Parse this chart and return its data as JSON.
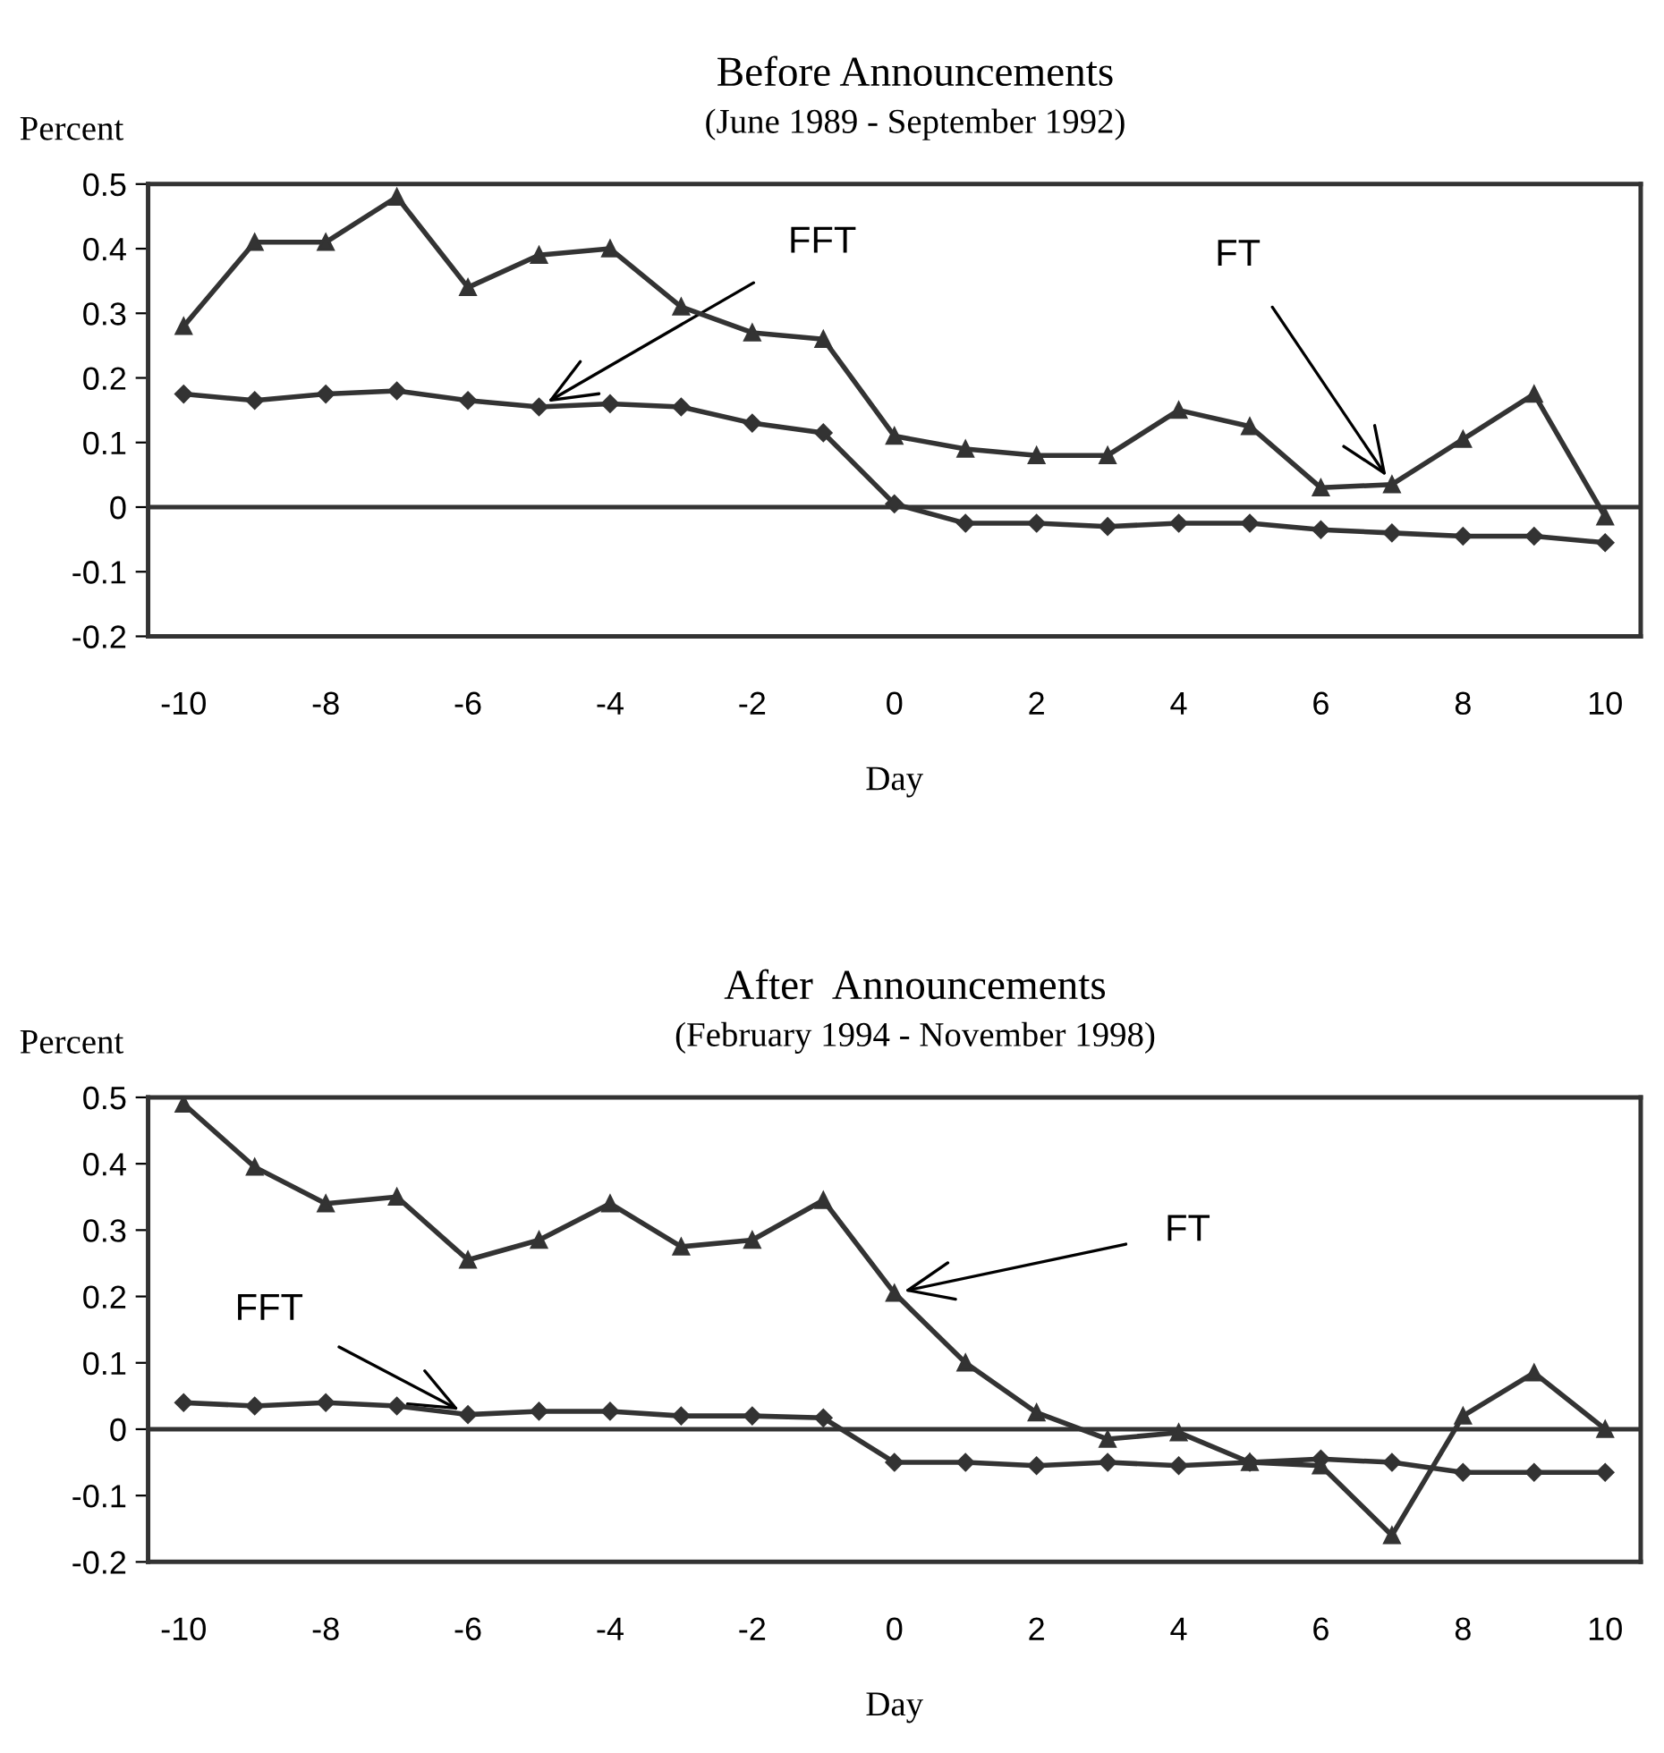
{
  "chart_data": [
    {
      "type": "line",
      "title": "Before Announcements",
      "subtitle": "(June 1989 - September 1992)",
      "xlabel": "Day",
      "ylabel": "Percent",
      "x": [
        -10,
        -9,
        -8,
        -7,
        -6,
        -5,
        -4,
        -3,
        -2,
        -1,
        0,
        1,
        2,
        3,
        4,
        5,
        6,
        7,
        8,
        9,
        10
      ],
      "series": [
        {
          "color": "#333333",
          "marker": "triangle",
          "values": [
            0.28,
            0.41,
            0.41,
            0.48,
            0.34,
            0.39,
            0.4,
            0.31,
            0.27,
            0.26,
            0.11,
            0.09,
            0.08,
            0.08,
            0.15,
            0.125,
            0.03,
            0.035,
            0.105,
            0.175,
            -0.015
          ]
        },
        {
          "color": "#333333",
          "marker": "diamond",
          "values": [
            0.175,
            0.165,
            0.175,
            0.18,
            0.165,
            0.155,
            0.16,
            0.155,
            0.13,
            0.115,
            0.005,
            -0.025,
            -0.025,
            -0.03,
            -0.025,
            -0.025,
            -0.035,
            -0.04,
            -0.045,
            -0.045,
            -0.055
          ]
        }
      ],
      "annotations": [
        {
          "text": "FFT",
          "x": -5,
          "y": 0.155
        },
        {
          "text": "FT",
          "x": 7,
          "y": 0.035
        }
      ],
      "ref_lines": [
        {
          "axis": "y",
          "value": 0,
          "color": "#333333"
        }
      ],
      "xlim": [
        -10.5,
        10.5
      ],
      "xticks": [
        -10,
        -8,
        -6,
        -4,
        -2,
        0,
        2,
        4,
        6,
        8,
        10
      ],
      "ylim": [
        -0.2,
        0.5
      ],
      "yticks": [
        -0.2,
        -0.1,
        0,
        0.1,
        0.2,
        0.3,
        0.4,
        0.5
      ],
      "grid": false,
      "legend": false
    },
    {
      "type": "line",
      "title": "After  Announcements",
      "subtitle": "(February 1994 - November 1998)",
      "xlabel": "Day",
      "ylabel": "Percent",
      "x": [
        -10,
        -9,
        -8,
        -7,
        -6,
        -5,
        -4,
        -3,
        -2,
        -1,
        0,
        1,
        2,
        3,
        4,
        5,
        6,
        7,
        8,
        9,
        10
      ],
      "series": [
        {
          "color": "#333333",
          "marker": "triangle",
          "values": [
            0.49,
            0.395,
            0.34,
            0.35,
            0.255,
            0.285,
            0.34,
            0.275,
            0.285,
            0.345,
            0.205,
            0.1,
            0.025,
            -0.015,
            -0.005,
            -0.05,
            -0.055,
            -0.16,
            0.02,
            0.085,
            0.0
          ]
        },
        {
          "color": "#333333",
          "marker": "diamond",
          "values": [
            0.04,
            0.035,
            0.04,
            0.035,
            0.022,
            0.027,
            0.027,
            0.02,
            0.02,
            0.017,
            -0.05,
            -0.05,
            -0.055,
            -0.05,
            -0.055,
            -0.05,
            -0.045,
            -0.05,
            -0.065,
            -0.065,
            -0.065
          ]
        }
      ],
      "annotations": [
        {
          "text": "FFT",
          "x": -6,
          "y": 0.022
        },
        {
          "text": "FT",
          "x": 0,
          "y": 0.205
        }
      ],
      "ref_lines": [
        {
          "axis": "y",
          "value": 0,
          "color": "#333333"
        }
      ],
      "xlim": [
        -10.5,
        10.5
      ],
      "xticks": [
        -10,
        -8,
        -6,
        -4,
        -2,
        0,
        2,
        4,
        6,
        8,
        10
      ],
      "ylim": [
        -0.2,
        0.5
      ],
      "yticks": [
        -0.2,
        -0.1,
        0,
        0.1,
        0.2,
        0.3,
        0.4,
        0.5
      ],
      "grid": false,
      "legend": false
    }
  ]
}
